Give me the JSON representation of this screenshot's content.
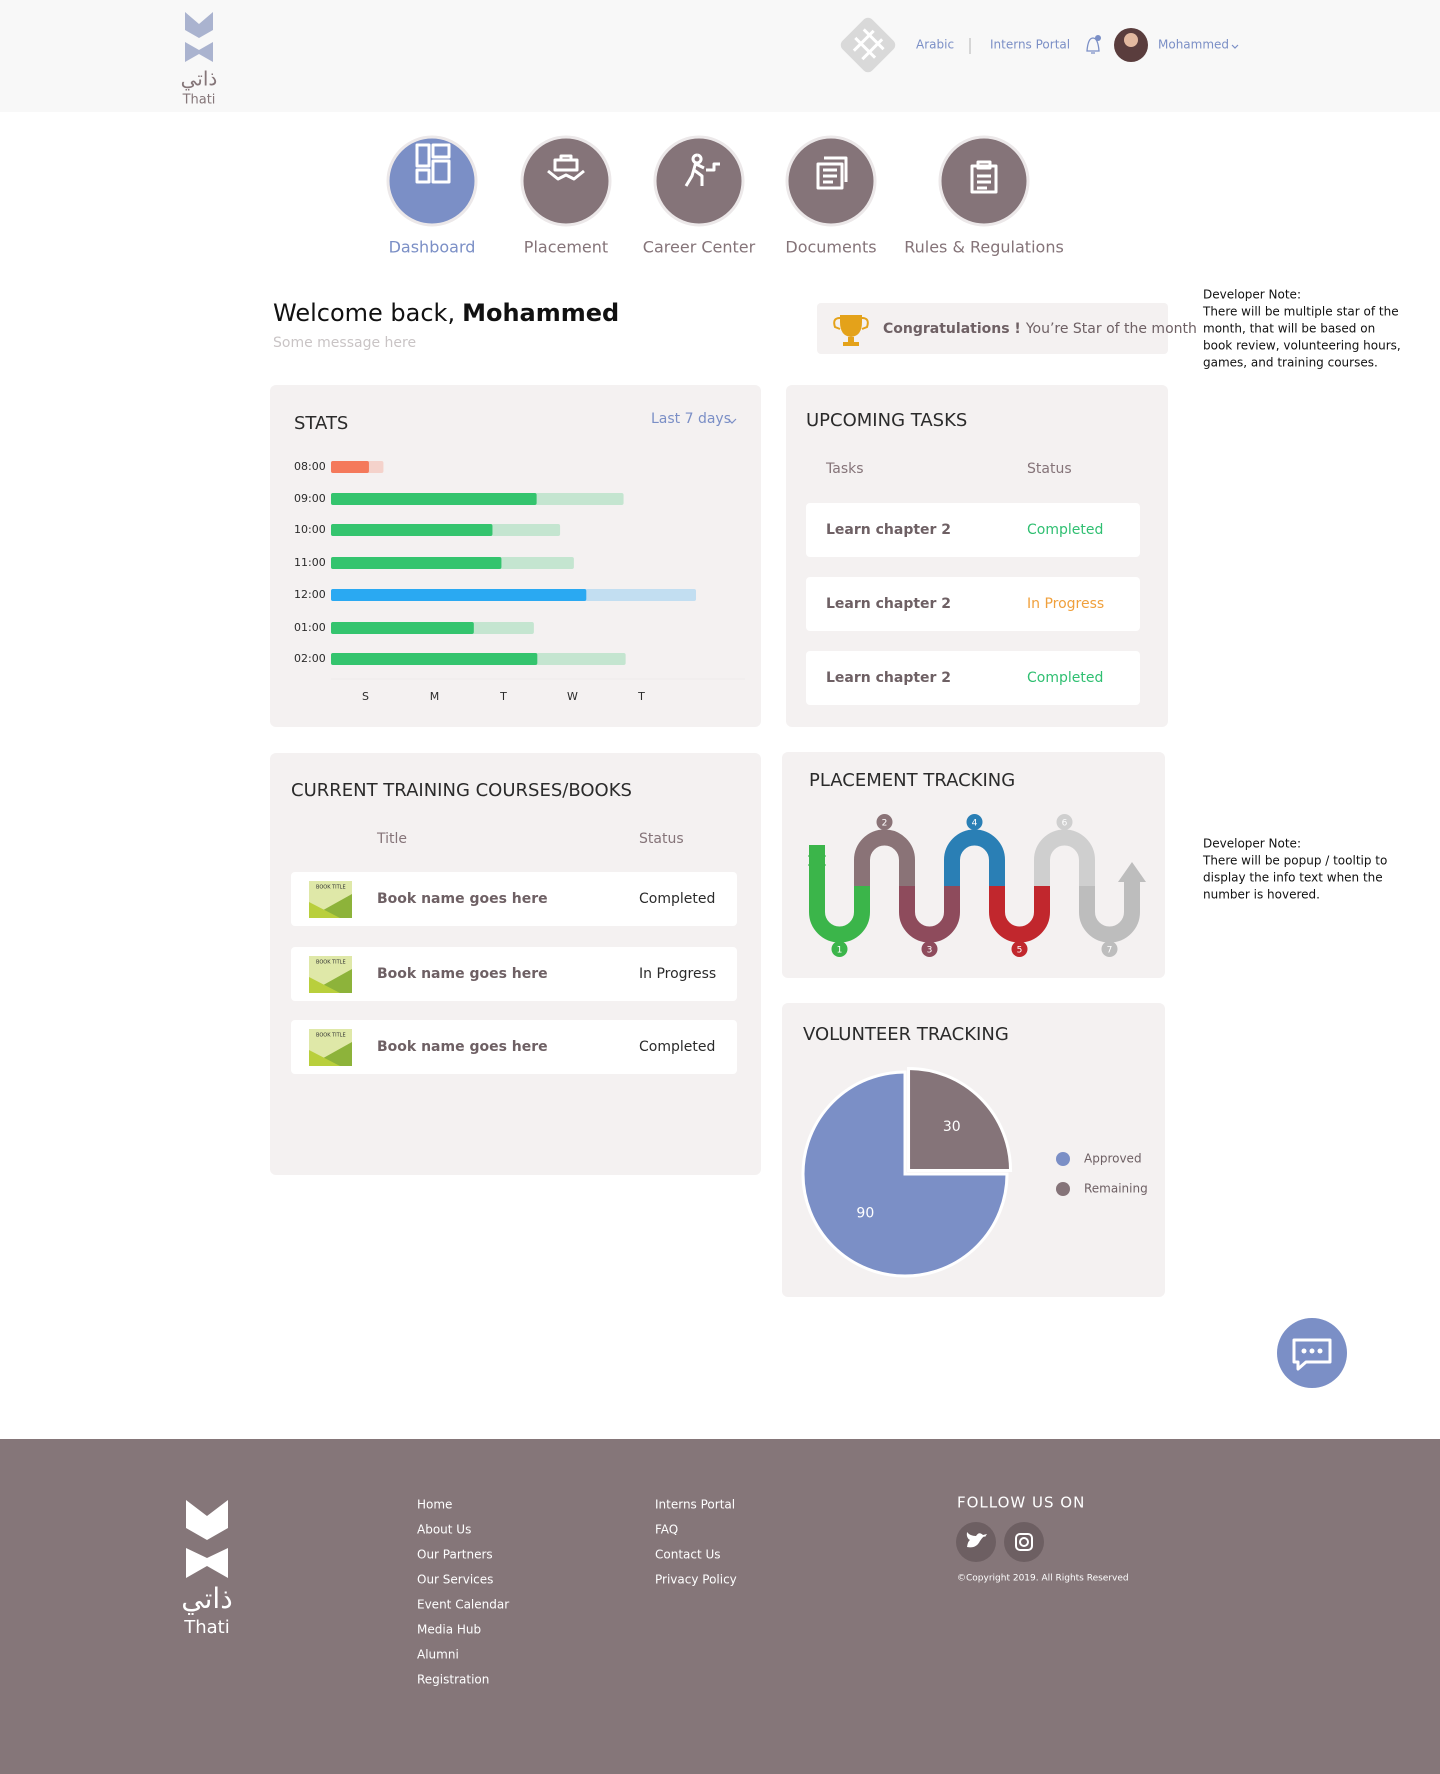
{
  "header": {
    "logo_arabic": "ذاتي",
    "logo_text": "Thati",
    "links": [
      "Arabic",
      "Interns Portal"
    ],
    "user": "Mohammed"
  },
  "nav": [
    "Dashboard",
    "Placement",
    "Career Center",
    "Documents",
    "Rules & Regulations"
  ],
  "welcome": {
    "greeting": "Welcome back,",
    "name": "Mohammed",
    "message": "Some message here"
  },
  "congrats": {
    "strong": "Congratulations !",
    "text": "You’re Star of the month"
  },
  "notes": [
    {
      "title": "Developer Note:",
      "lines": [
        "There will be multiple star of the",
        "month, that will be based on",
        "book review, volunteering hours,",
        "games, and training courses."
      ]
    },
    {
      "title": "Developer Note:",
      "lines": [
        "There will be popup / tooltip to",
        "display the info text when the",
        "number is hovered."
      ]
    }
  ],
  "chart_data": [
    {
      "type": "bar",
      "title": "STATS",
      "filter": "Last 7 days",
      "categories": [
        "08:00",
        "09:00",
        "10:00",
        "11:00",
        "12:00",
        "01:00",
        "02:00"
      ],
      "x_categories": [
        "S",
        "M",
        "T",
        "W",
        "T"
      ],
      "values": [
        0.55,
        2.98,
        2.34,
        2.47,
        3.7,
        2.07,
        2.99
      ],
      "targets": [
        0.76,
        4.24,
        3.32,
        3.52,
        5.29,
        2.94,
        4.27
      ],
      "colors": [
        "#f4795b",
        "#34c46e",
        "#34c46e",
        "#34c46e",
        "#2aa9f2",
        "#34c46e",
        "#34c46e"
      ],
      "xlim": [
        0,
        6
      ]
    },
    {
      "type": "pie",
      "title": "VOLUNTEER TRACKING",
      "categories": [
        "Approved",
        "Remaining"
      ],
      "values": [
        90,
        30
      ],
      "colors": [
        "#7b8fc6",
        "#857479"
      ]
    }
  ],
  "tasks": {
    "title": "UPCOMING TASKS",
    "headers": [
      "Tasks",
      "Status"
    ],
    "rows": [
      [
        "Learn chapter 2",
        "Completed"
      ],
      [
        "Learn chapter 2",
        "In Progress"
      ],
      [
        "Learn chapter 2",
        "Completed"
      ]
    ],
    "colors": [
      "#2fbf71",
      "#f0a03c",
      "#2fbf71"
    ]
  },
  "courses": {
    "title": "CURRENT TRAINING COURSES/BOOKS",
    "headers": [
      "Title",
      "Status"
    ],
    "thumbnail_label": "BOOK TITLE",
    "rows": [
      [
        "Book name goes here",
        "Completed"
      ],
      [
        "Book name goes here",
        "In Progress"
      ],
      [
        "Book name goes here",
        "Completed"
      ]
    ]
  },
  "placement": {
    "title": "PLACEMENT TRACKING",
    "steps": [
      1,
      2,
      3,
      4,
      5,
      6,
      7
    ],
    "colors": [
      "#3bb54a",
      "#8a7377",
      "#8e4b5c",
      "#2a7fb5",
      "#c1272d",
      "#cfcfcf",
      "#bdbdbd"
    ]
  },
  "footer": {
    "logo_arabic": "ذاتي",
    "logo_text": "Thati",
    "links1": [
      "Home",
      "About Us",
      "Our Partners",
      "Our Services",
      "Event Calendar",
      "Media Hub",
      "Alumni",
      "Registration"
    ],
    "links2": [
      "Interns Portal",
      "FAQ",
      "Contact Us",
      "Privacy Policy"
    ],
    "follow": "FOLLOW US ON",
    "copyright": "©Copyright 2019. All Rights Reserved"
  }
}
